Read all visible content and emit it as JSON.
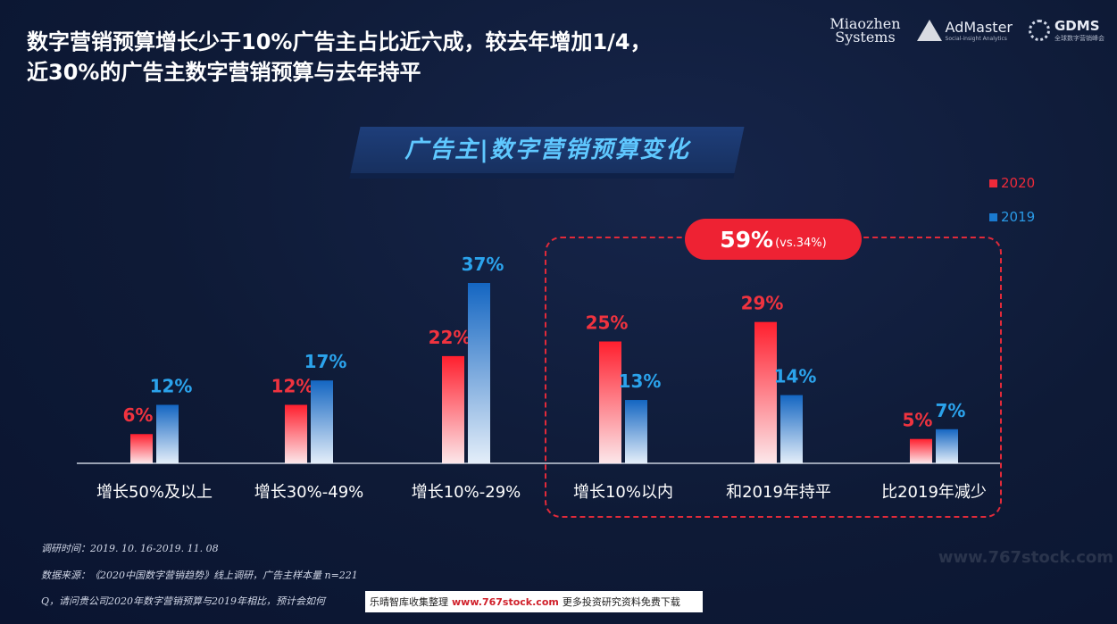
{
  "headline": {
    "line1": "数字营销预算增长少于10%广告主占比近六成，较去年增加1/4，",
    "line2": "近30%的广告主数字营销预算与去年持平"
  },
  "logos": {
    "miaozhen_line1": "Miaozhen",
    "miaozhen_line2": "Systems",
    "admaster_name": "AdMaster",
    "admaster_sub": "Social-insight Analytics",
    "gdms_name": "GDMS",
    "gdms_sub": "全球数字营销峰会"
  },
  "highlight": {
    "main": "59%",
    "sub": "(vs.34%)"
  },
  "chart_data": {
    "type": "bar",
    "title": "广告主|数字营销预算变化",
    "categories": [
      "增长50%及以上",
      "增长30%-49%",
      "增长10%-29%",
      "增长10%以内",
      "和2019年持平",
      "比2019年减少"
    ],
    "series": [
      {
        "name": "2020",
        "values": [
          6,
          12,
          22,
          25,
          29,
          5
        ],
        "labels": [
          "6%",
          "12%",
          "22%",
          "25%",
          "29%",
          "5%"
        ],
        "color": "#f0333f"
      },
      {
        "name": "2019",
        "values": [
          12,
          17,
          37,
          13,
          14,
          7
        ],
        "labels": [
          "12%",
          "17%",
          "37%",
          "13%",
          "14%",
          "7%"
        ],
        "color": "#1a7ad0"
      }
    ],
    "ylim": [
      0,
      37
    ],
    "legend_position": "top-right",
    "grid": false
  },
  "footnotes": {
    "time": "调研时间：2019. 10. 16-2019. 11. 08",
    "source": "数据来源：《2020中国数字营销趋势》线上调研，广告主样本量 n=221",
    "question": "Q，请问贵公司2020年数字营销预算与2019年相比，预计会如何"
  },
  "watermark": {
    "text1": "乐晴智库收集整理",
    "url": "www.767stock.com",
    "text2": "更多投资研究资料免费下载",
    "faint": "www.767stock.com"
  }
}
